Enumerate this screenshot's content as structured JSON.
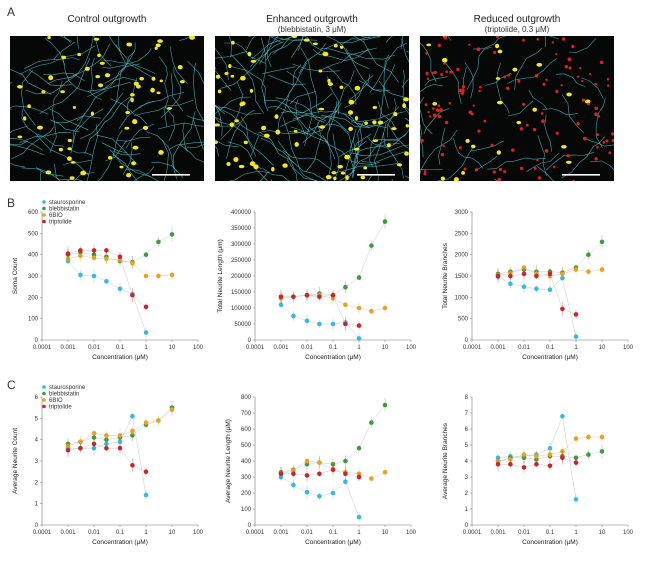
{
  "panels": {
    "a": "A",
    "b": "B",
    "c": "C"
  },
  "images": [
    {
      "title": "Control outgrowth",
      "subtitle": "",
      "type": "enhanced"
    },
    {
      "title": "Enhanced outgrowth",
      "subtitle": "(blebbistatin, 3 μM)",
      "type": "dense"
    },
    {
      "title": "Reduced outgrowth",
      "subtitle": "(triptolide, 0.3 μM)",
      "type": "reduced"
    }
  ],
  "colors": {
    "staurosporine": "#35b9e6",
    "blebbistatin": "#3f9a3f",
    "6BIO": "#e8a21f",
    "triptolide": "#c8262c",
    "neurite": "#4fc0c8",
    "soma": "#f2e81a",
    "dead": "#e0201e"
  },
  "legend": [
    "staurosporine",
    "blebbistatin",
    "6BIO",
    "triptolide"
  ],
  "chart_data": [
    {
      "type": "scatter",
      "id": "B1",
      "xlabel": "Concentration (μM)",
      "ylabel": "Soma Count",
      "xscale": "log",
      "xlim": [
        0.0001,
        100
      ],
      "ylim": [
        0,
        600
      ],
      "xticks": [
        "0.0001",
        "0.001",
        "0.01",
        "0.1",
        "1",
        "10",
        "100"
      ],
      "yticks": [
        0,
        100,
        200,
        300,
        400,
        500,
        600
      ],
      "legend_shown": true,
      "series": [
        {
          "name": "staurosporine",
          "x": [
            0.001,
            0.003,
            0.01,
            0.03,
            0.1,
            0.3,
            1
          ],
          "y": [
            370,
            305,
            300,
            275,
            240,
            215,
            35
          ]
        },
        {
          "name": "blebbistatin",
          "x": [
            0.001,
            0.003,
            0.01,
            0.03,
            0.1,
            0.3,
            1,
            3,
            10
          ],
          "y": [
            400,
            410,
            400,
            390,
            370,
            365,
            400,
            460,
            495
          ]
        },
        {
          "name": "6BIO",
          "x": [
            0.001,
            0.003,
            0.01,
            0.03,
            0.1,
            0.3,
            1,
            3,
            10
          ],
          "y": [
            380,
            395,
            385,
            380,
            375,
            360,
            300,
            300,
            305
          ]
        },
        {
          "name": "triptolide",
          "x": [
            0.001,
            0.003,
            0.01,
            0.03,
            0.1,
            0.3,
            1
          ],
          "y": [
            405,
            420,
            420,
            420,
            390,
            210,
            155
          ]
        }
      ]
    },
    {
      "type": "scatter",
      "id": "B2",
      "xlabel": "Concentration (μM)",
      "ylabel": "Total Neurite Length (μm)",
      "xscale": "log",
      "xlim": [
        0.0001,
        100
      ],
      "ylim": [
        0,
        400000
      ],
      "xticks": [
        "0.0001",
        "0.001",
        "0.01",
        "0.1",
        "1",
        "10",
        "100"
      ],
      "yticks": [
        0,
        50000,
        100000,
        150000,
        200000,
        250000,
        300000,
        350000,
        400000
      ],
      "legend_shown": false,
      "series": [
        {
          "name": "staurosporine",
          "x": [
            0.001,
            0.003,
            0.01,
            0.03,
            0.1,
            0.3,
            1
          ],
          "y": [
            110000,
            75000,
            60000,
            50000,
            50000,
            55000,
            5000
          ]
        },
        {
          "name": "blebbistatin",
          "x": [
            0.001,
            0.003,
            0.01,
            0.03,
            0.1,
            0.3,
            1,
            3,
            10
          ],
          "y": [
            135000,
            135000,
            140000,
            145000,
            140000,
            165000,
            195000,
            295000,
            370000
          ]
        },
        {
          "name": "6BIO",
          "x": [
            0.001,
            0.003,
            0.01,
            0.03,
            0.1,
            0.3,
            1,
            3,
            10
          ],
          "y": [
            130000,
            135000,
            140000,
            140000,
            130000,
            110000,
            100000,
            90000,
            100000
          ]
        },
        {
          "name": "triptolide",
          "x": [
            0.001,
            0.003,
            0.01,
            0.03,
            0.1,
            0.3,
            1
          ],
          "y": [
            135000,
            135000,
            140000,
            135000,
            140000,
            50000,
            45000
          ]
        }
      ]
    },
    {
      "type": "scatter",
      "id": "B3",
      "xlabel": "Concentration (μM)",
      "ylabel": "Total Neurite Branches",
      "xscale": "log",
      "xlim": [
        0.0001,
        100
      ],
      "ylim": [
        0,
        3000
      ],
      "xticks": [
        "0.0001",
        "0.001",
        "0.01",
        "0.1",
        "1",
        "10",
        "100"
      ],
      "yticks": [
        0,
        500,
        1000,
        1500,
        2000,
        2500,
        3000
      ],
      "legend_shown": false,
      "series": [
        {
          "name": "staurosporine",
          "x": [
            0.001,
            0.003,
            0.01,
            0.03,
            0.1,
            0.3,
            1
          ],
          "y": [
            1480,
            1320,
            1250,
            1200,
            1180,
            1450,
            80
          ]
        },
        {
          "name": "blebbistatin",
          "x": [
            0.001,
            0.003,
            0.01,
            0.03,
            0.1,
            0.3,
            1,
            3,
            10
          ],
          "y": [
            1550,
            1600,
            1650,
            1600,
            1600,
            1580,
            1700,
            2000,
            2300
          ]
        },
        {
          "name": "6BIO",
          "x": [
            0.001,
            0.003,
            0.01,
            0.03,
            0.1,
            0.3,
            1,
            3,
            10
          ],
          "y": [
            1520,
            1560,
            1700,
            1550,
            1500,
            1550,
            1650,
            1600,
            1650
          ]
        },
        {
          "name": "triptolide",
          "x": [
            0.001,
            0.003,
            0.01,
            0.03,
            0.1,
            0.3,
            1
          ],
          "y": [
            1500,
            1500,
            1550,
            1500,
            1550,
            730,
            600
          ]
        }
      ]
    },
    {
      "type": "scatter",
      "id": "C1",
      "xlabel": "Concentration (μM)",
      "ylabel": "Average Neurite Count",
      "xscale": "log",
      "xlim": [
        0.0001,
        100
      ],
      "ylim": [
        0,
        6
      ],
      "xticks": [
        "0.0001",
        "0.001",
        "0.01",
        "0.1",
        "1",
        "10",
        "100"
      ],
      "yticks": [
        0,
        1,
        2,
        3,
        4,
        5,
        6
      ],
      "legend_shown": true,
      "series": [
        {
          "name": "staurosporine",
          "x": [
            0.001,
            0.003,
            0.01,
            0.03,
            0.1,
            0.3,
            1
          ],
          "y": [
            3.6,
            3.6,
            3.6,
            3.8,
            3.9,
            5.1,
            1.4
          ]
        },
        {
          "name": "blebbistatin",
          "x": [
            0.001,
            0.003,
            0.01,
            0.03,
            0.1,
            0.3,
            1,
            3,
            10
          ],
          "y": [
            3.8,
            3.9,
            4.1,
            4.0,
            4.1,
            4.2,
            4.7,
            4.9,
            5.5
          ]
        },
        {
          "name": "6BIO",
          "x": [
            0.001,
            0.003,
            0.01,
            0.03,
            0.1,
            0.3,
            1,
            3,
            10
          ],
          "y": [
            3.7,
            3.9,
            4.3,
            4.2,
            4.2,
            4.4,
            4.8,
            4.9,
            5.4
          ]
        },
        {
          "name": "triptolide",
          "x": [
            0.001,
            0.003,
            0.01,
            0.03,
            0.1,
            0.3,
            1
          ],
          "y": [
            3.5,
            3.6,
            3.8,
            3.6,
            3.6,
            2.8,
            2.5
          ]
        }
      ]
    },
    {
      "type": "scatter",
      "id": "C2",
      "xlabel": "Concentration (μM)",
      "ylabel": "Average Neurite Length (μM)",
      "xscale": "log",
      "xlim": [
        0.0001,
        100
      ],
      "ylim": [
        0,
        800
      ],
      "xticks": [
        "0.0001",
        "0.001",
        "0.01",
        "0.1",
        "1",
        "10",
        "100"
      ],
      "yticks": [
        0,
        100,
        200,
        300,
        400,
        500,
        600,
        700,
        800
      ],
      "legend_shown": false,
      "series": [
        {
          "name": "staurosporine",
          "x": [
            0.001,
            0.003,
            0.01,
            0.03,
            0.1,
            0.3,
            1
          ],
          "y": [
            300,
            250,
            205,
            180,
            200,
            270,
            50
          ]
        },
        {
          "name": "blebbistatin",
          "x": [
            0.001,
            0.003,
            0.01,
            0.03,
            0.1,
            0.3,
            1,
            3,
            10
          ],
          "y": [
            330,
            345,
            380,
            390,
            380,
            400,
            480,
            640,
            750
          ]
        },
        {
          "name": "6BIO",
          "x": [
            0.001,
            0.003,
            0.01,
            0.03,
            0.1,
            0.3,
            1,
            3,
            10
          ],
          "y": [
            320,
            340,
            400,
            390,
            350,
            330,
            320,
            290,
            330
          ]
        },
        {
          "name": "triptolide",
          "x": [
            0.001,
            0.003,
            0.01,
            0.03,
            0.1,
            0.3,
            1
          ],
          "y": [
            320,
            320,
            310,
            320,
            345,
            320,
            300
          ]
        }
      ]
    },
    {
      "type": "scatter",
      "id": "C3",
      "xlabel": "Concentration (μM)",
      "ylabel": "Average Neurite Branches",
      "xscale": "log",
      "xlim": [
        0.0001,
        100
      ],
      "ylim": [
        0,
        8
      ],
      "xticks": [
        "0.0001",
        "0.001",
        "0.01",
        "0.1",
        "1",
        "10",
        "100"
      ],
      "yticks": [
        0,
        1,
        2,
        3,
        4,
        5,
        6,
        7,
        8
      ],
      "legend_shown": false,
      "series": [
        {
          "name": "staurosporine",
          "x": [
            0.001,
            0.003,
            0.01,
            0.03,
            0.1,
            0.3,
            1
          ],
          "y": [
            4.2,
            4.3,
            4.3,
            4.4,
            4.8,
            6.8,
            1.6
          ]
        },
        {
          "name": "blebbistatin",
          "x": [
            0.001,
            0.003,
            0.01,
            0.03,
            0.1,
            0.3,
            1,
            3,
            10
          ],
          "y": [
            4.0,
            4.2,
            4.2,
            4.1,
            4.3,
            4.3,
            4.2,
            4.4,
            4.6
          ]
        },
        {
          "name": "6BIO",
          "x": [
            0.001,
            0.003,
            0.01,
            0.03,
            0.1,
            0.3,
            1,
            3,
            10
          ],
          "y": [
            4.0,
            4.1,
            4.4,
            4.3,
            4.4,
            4.6,
            5.4,
            5.5,
            5.5
          ]
        },
        {
          "name": "triptolide",
          "x": [
            0.001,
            0.003,
            0.01,
            0.03,
            0.1,
            0.3,
            1
          ],
          "y": [
            3.8,
            3.8,
            3.6,
            3.8,
            3.7,
            4.2,
            3.9
          ]
        }
      ]
    }
  ]
}
